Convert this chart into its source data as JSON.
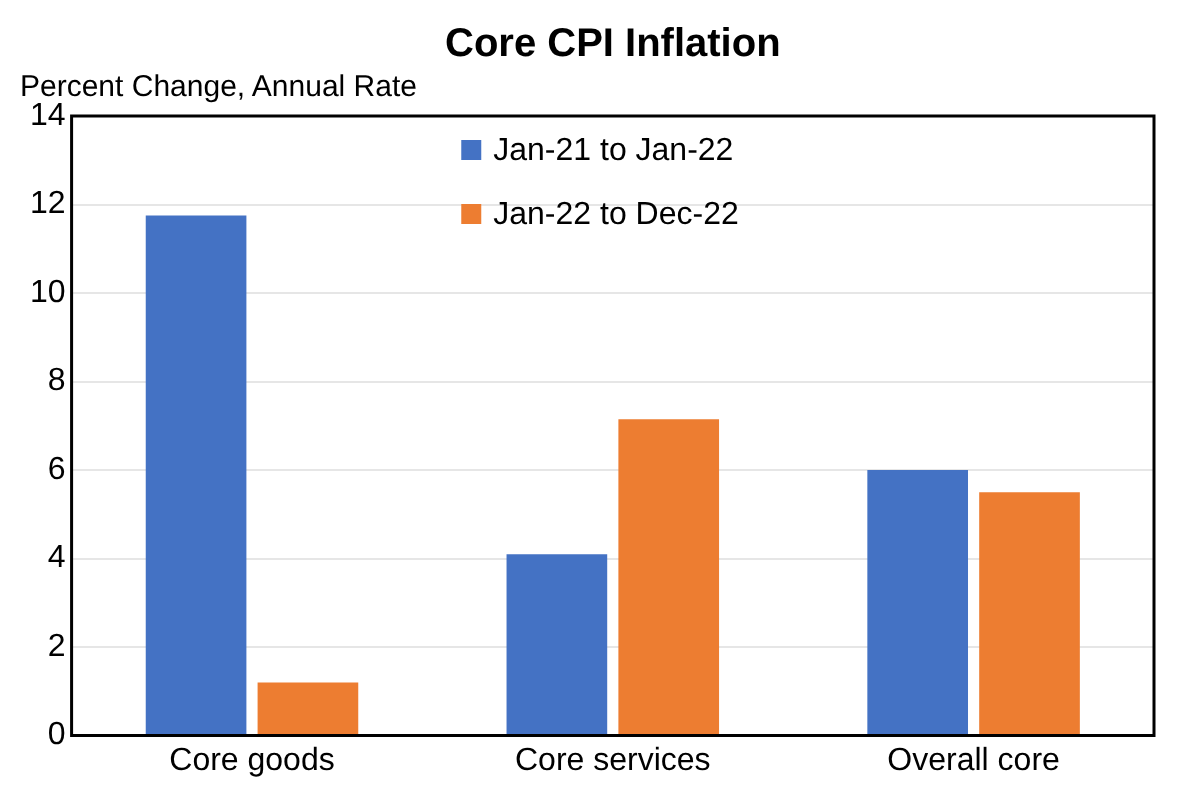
{
  "chart_data": {
    "type": "bar",
    "title": "Core CPI Inflation",
    "ylabel": "Percent Change, Annual Rate",
    "categories": [
      "Core goods",
      "Core services",
      "Overall core"
    ],
    "series": [
      {
        "name": "Jan-21 to Jan-22",
        "color": "#4472c4",
        "values": [
          11.75,
          4.1,
          6.0
        ]
      },
      {
        "name": "Jan-22 to Dec-22",
        "color": "#ed7d31",
        "values": [
          1.2,
          7.15,
          5.5
        ]
      }
    ],
    "ylim": [
      0,
      14
    ],
    "yticks": [
      0,
      2,
      4,
      6,
      8,
      10,
      12,
      14
    ],
    "grid": "y",
    "legend": "top"
  }
}
